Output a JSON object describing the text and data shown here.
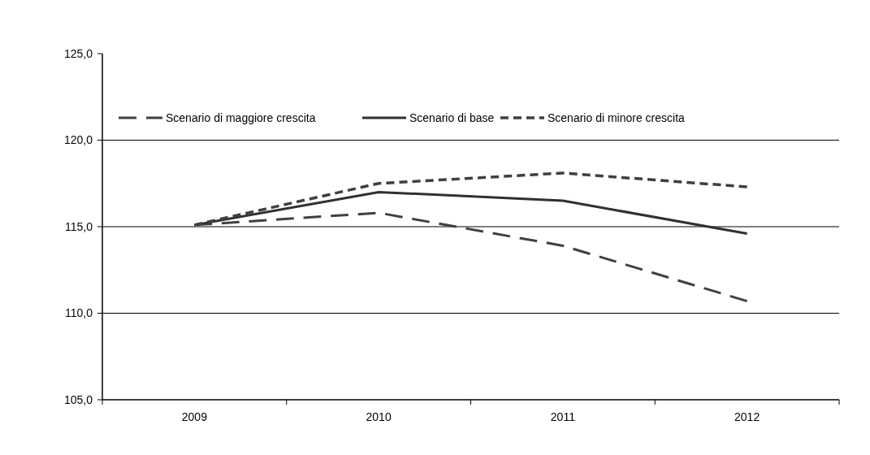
{
  "chart_data": {
    "type": "line",
    "categories": [
      "2009",
      "2010",
      "2011",
      "2012"
    ],
    "series": [
      {
        "name": "Scenario di maggiore crescita",
        "color": "#404040",
        "line_style": "dashed",
        "values": [
          115.1,
          115.8,
          113.9,
          110.7
        ]
      },
      {
        "name": "Scenario di base",
        "color": "#303030",
        "line_style": "solid",
        "values": [
          115.1,
          117.0,
          116.5,
          114.6
        ]
      },
      {
        "name": "Scenario di minore crescita",
        "color": "#404040",
        "line_style": "dotted",
        "values": [
          115.1,
          117.5,
          118.1,
          117.3
        ]
      }
    ],
    "ylim": [
      105,
      125
    ],
    "yticks": [
      {
        "value": 105,
        "label": "105,0"
      },
      {
        "value": 110,
        "label": "110,0"
      },
      {
        "value": 115,
        "label": "115,0"
      },
      {
        "value": 120,
        "label": "120,0"
      },
      {
        "value": 125,
        "label": "125,0"
      }
    ],
    "grid": "y",
    "legend": "top",
    "marker": "none"
  }
}
